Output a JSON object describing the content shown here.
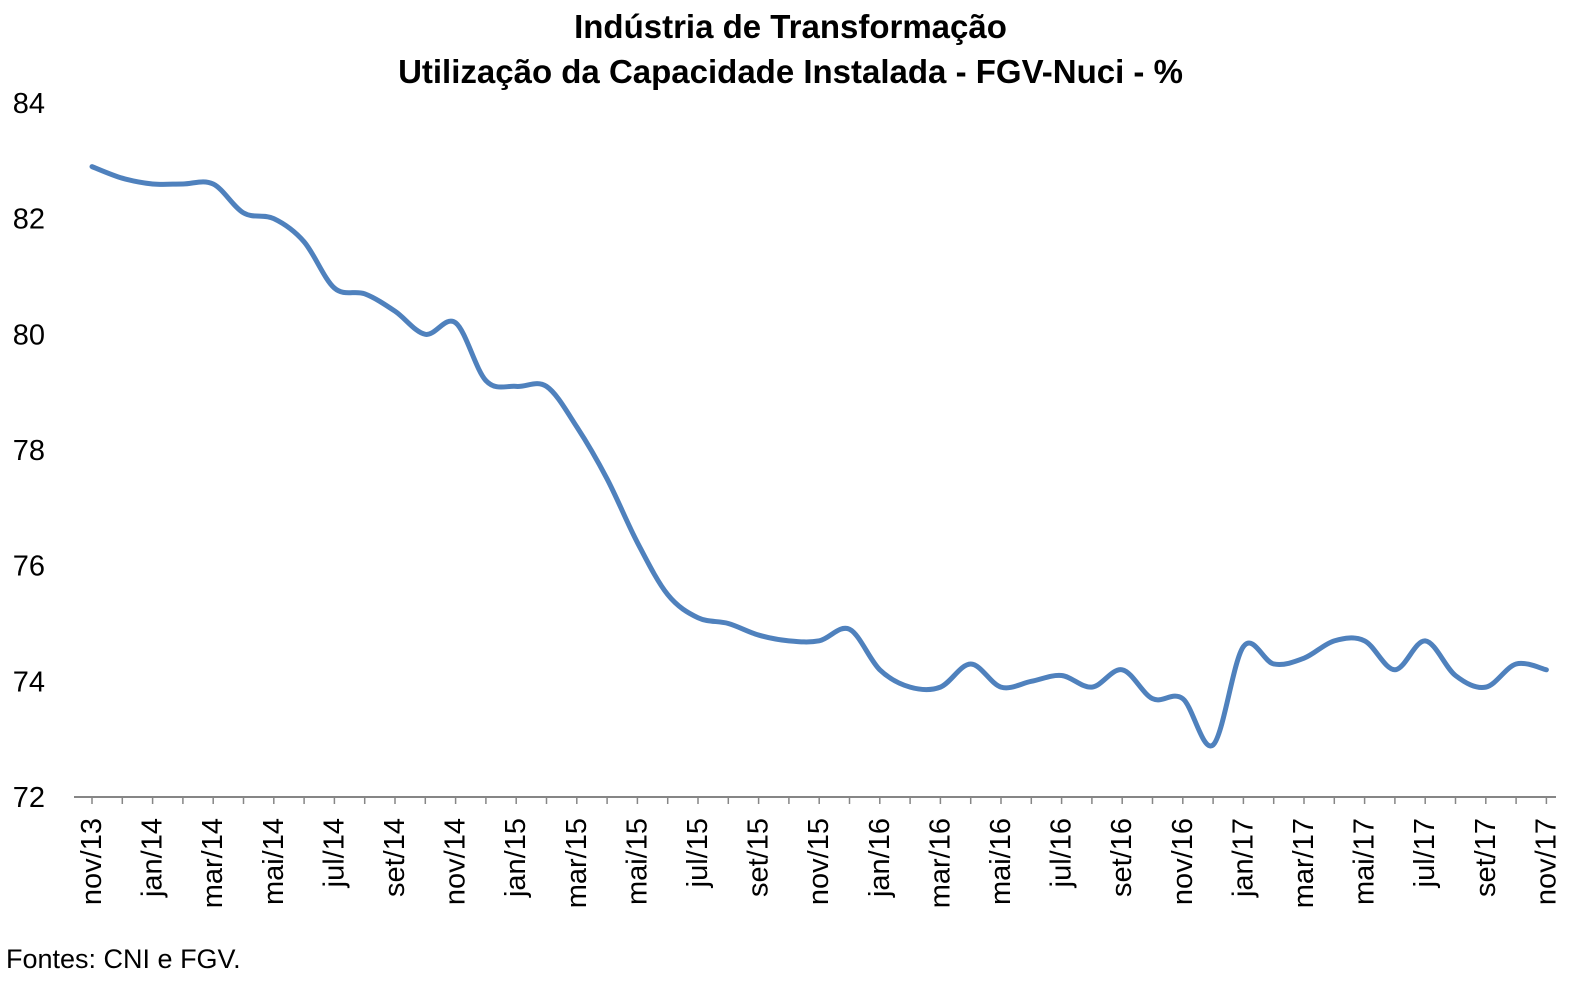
{
  "chart_data": {
    "type": "line",
    "title": "Indústria de Transformação",
    "subtitle": "Utilização da Capacidade Instalada - FGV-Nuci - %",
    "xlabel": "",
    "ylabel": "",
    "ylim": [
      72,
      84
    ],
    "yticks": [
      "72",
      "74",
      "76",
      "78",
      "80",
      "82",
      "84"
    ],
    "grid": false,
    "legend": "none",
    "line_color": "#4F81BD",
    "axis_color": "#868686",
    "categories": [
      "nov/13",
      "dez/13",
      "jan/14",
      "fev/14",
      "mar/14",
      "abr/14",
      "mai/14",
      "jun/14",
      "jul/14",
      "ago/14",
      "set/14",
      "out/14",
      "nov/14",
      "dez/14",
      "jan/15",
      "fev/15",
      "mar/15",
      "abr/15",
      "mai/15",
      "jun/15",
      "jul/15",
      "ago/15",
      "set/15",
      "out/15",
      "nov/15",
      "dez/15",
      "jan/16",
      "fev/16",
      "mar/16",
      "abr/16",
      "mai/16",
      "jun/16",
      "jul/16",
      "ago/16",
      "set/16",
      "out/16",
      "nov/16",
      "dez/16",
      "jan/17",
      "fev/17",
      "mar/17",
      "abr/17",
      "mai/17",
      "jun/17",
      "jul/17",
      "ago/17",
      "set/17",
      "out/17",
      "nov/17"
    ],
    "tick_labels": [
      "nov/13",
      "jan/14",
      "mar/14",
      "mai/14",
      "jul/14",
      "set/14",
      "nov/14",
      "jan/15",
      "mar/15",
      "mai/15",
      "jul/15",
      "set/15",
      "nov/15",
      "jan/16",
      "mar/16",
      "mai/16",
      "jul/16",
      "set/16",
      "nov/16",
      "jan/17",
      "mar/17",
      "mai/17",
      "jul/17",
      "set/17",
      "nov/17"
    ],
    "series": [
      {
        "values": [
          82.9,
          82.7,
          82.6,
          82.6,
          82.6,
          82.1,
          82.0,
          81.6,
          80.8,
          80.7,
          80.4,
          80.0,
          80.2,
          79.2,
          79.1,
          79.1,
          78.4,
          77.5,
          76.4,
          75.5,
          75.1,
          75.0,
          74.8,
          74.7,
          74.7,
          74.9,
          74.2,
          73.9,
          73.9,
          74.3,
          73.9,
          74.0,
          74.1,
          73.9,
          74.2,
          73.7,
          73.7,
          72.9,
          74.6,
          74.3,
          74.4,
          74.7,
          74.7,
          74.2,
          74.7,
          74.1,
          73.9,
          74.3,
          74.2
        ]
      }
    ]
  },
  "source_note": "Fontes: CNI e FGV."
}
